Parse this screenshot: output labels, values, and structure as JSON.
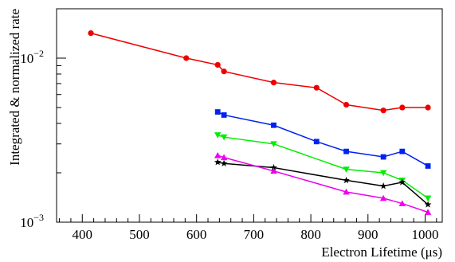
{
  "chart_data": {
    "type": "line",
    "xlabel": "Electron Lifetime (μs)",
    "ylabel": "Integrated & normalized rate",
    "xlim": [
      355,
      1030
    ],
    "ylim": [
      0.001,
      0.02
    ],
    "y_scale": "log",
    "grid": false,
    "legend": "none",
    "x_ticks": [
      400,
      500,
      600,
      700,
      800,
      900,
      1000
    ],
    "y_ticks": [
      {
        "value": 0.001,
        "base": "10",
        "exp": "−3"
      },
      {
        "value": 0.01,
        "base": "10",
        "exp": "−2"
      }
    ],
    "series": [
      {
        "color": "#ee0000",
        "marker": "circle",
        "x": [
          415,
          582,
          637,
          648,
          735,
          810,
          862,
          927,
          960,
          1005
        ],
        "y": [
          0.0142,
          0.01,
          0.0091,
          0.0083,
          0.0071,
          0.0066,
          0.0052,
          0.0048,
          0.005,
          0.005
        ]
      },
      {
        "color": "#0022ee",
        "marker": "square",
        "x": [
          637,
          648,
          735,
          810,
          862,
          927,
          960,
          1005
        ],
        "y": [
          0.0047,
          0.0045,
          0.0039,
          0.0031,
          0.0027,
          0.0025,
          0.0027,
          0.0022
        ]
      },
      {
        "color": "#00ee00",
        "marker": "triangle-down",
        "x": [
          637,
          648,
          735,
          862,
          927,
          960,
          1005
        ],
        "y": [
          0.0034,
          0.0033,
          0.003,
          0.0021,
          0.002,
          0.0018,
          0.0014
        ]
      },
      {
        "color": "#000000",
        "marker": "star",
        "x": [
          637,
          648,
          735,
          862,
          927,
          960,
          1005
        ],
        "y": [
          0.00232,
          0.00228,
          0.00215,
          0.0018,
          0.00166,
          0.00175,
          0.00128
        ]
      },
      {
        "color": "#ee00ee",
        "marker": "triangle-up",
        "x": [
          637,
          648,
          735,
          862,
          927,
          960,
          1005
        ],
        "y": [
          0.00255,
          0.00248,
          0.00205,
          0.00153,
          0.0014,
          0.0013,
          0.00115
        ]
      }
    ]
  }
}
